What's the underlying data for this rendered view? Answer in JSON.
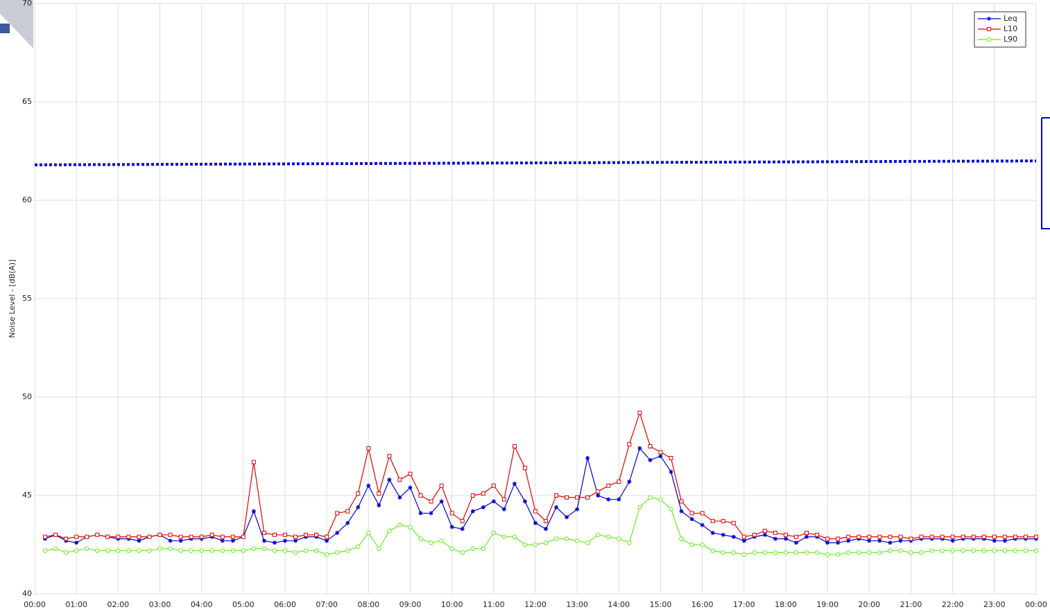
{
  "chart_data": {
    "type": "line",
    "y_label": "Noise Level - [dB(A)]",
    "x": [
      0.25,
      0.5,
      0.75,
      1,
      1.25,
      1.5,
      1.75,
      2,
      2.25,
      2.5,
      2.75,
      3,
      3.25,
      3.5,
      3.75,
      4,
      4.25,
      4.5,
      4.75,
      5,
      5.25,
      5.5,
      5.75,
      6,
      6.25,
      6.5,
      6.75,
      7,
      7.25,
      7.5,
      7.75,
      8,
      8.25,
      8.5,
      8.75,
      9,
      9.25,
      9.5,
      9.75,
      10,
      10.25,
      10.5,
      10.75,
      11,
      11.25,
      11.5,
      11.75,
      12,
      12.25,
      12.5,
      12.75,
      13,
      13.25,
      13.5,
      13.75,
      14,
      14.25,
      14.5,
      14.75,
      15,
      15.25,
      15.5,
      15.75,
      16,
      16.25,
      16.5,
      16.75,
      17,
      17.25,
      17.5,
      17.75,
      18,
      18.25,
      18.5,
      18.75,
      19,
      19.25,
      19.5,
      19.75,
      20,
      20.25,
      20.5,
      20.75,
      21,
      21.25,
      21.5,
      21.75,
      22,
      22.25,
      22.5,
      22.75,
      23,
      23.25,
      23.5,
      23.75,
      24
    ],
    "series": [
      {
        "name": "Leq",
        "color": "#0000cc",
        "marker": "star",
        "values": [
          42.8,
          43.0,
          42.7,
          42.6,
          42.9,
          43.0,
          42.9,
          42.8,
          42.8,
          42.7,
          42.9,
          43.0,
          42.7,
          42.7,
          42.8,
          42.8,
          42.9,
          42.7,
          42.7,
          42.9,
          44.2,
          42.7,
          42.6,
          42.7,
          42.7,
          42.9,
          42.9,
          42.7,
          43.1,
          43.6,
          44.4,
          45.5,
          44.5,
          45.8,
          44.9,
          45.4,
          44.1,
          44.1,
          44.7,
          43.4,
          43.3,
          44.2,
          44.4,
          44.7,
          44.3,
          45.6,
          44.7,
          43.6,
          43.3,
          44.4,
          43.9,
          44.3,
          46.9,
          45.0,
          44.8,
          44.8,
          45.7,
          47.4,
          46.8,
          47.0,
          46.2,
          44.2,
          43.8,
          43.5,
          43.1,
          43.0,
          42.9,
          42.7,
          42.9,
          43.0,
          42.8,
          42.8,
          42.6,
          42.9,
          42.9,
          42.6,
          42.6,
          42.7,
          42.8,
          42.7,
          42.7,
          42.6,
          42.7,
          42.7,
          42.8,
          42.8,
          42.8,
          42.7,
          42.8,
          42.8,
          42.8,
          42.7,
          42.7,
          42.8,
          42.8,
          42.8
        ]
      },
      {
        "name": "L10",
        "color": "#e00000",
        "marker": "square",
        "values": [
          42.9,
          43.0,
          42.8,
          42.9,
          42.9,
          43.0,
          42.9,
          42.9,
          42.9,
          42.9,
          42.9,
          43.0,
          43.0,
          42.9,
          42.9,
          42.9,
          43.0,
          42.9,
          42.9,
          42.9,
          46.7,
          43.1,
          43.0,
          43.0,
          42.9,
          43.0,
          43.0,
          42.9,
          44.1,
          44.2,
          45.1,
          47.4,
          45.1,
          47.0,
          45.8,
          46.1,
          45.0,
          44.7,
          45.5,
          44.1,
          43.7,
          45.0,
          45.1,
          45.5,
          44.8,
          47.5,
          46.4,
          44.2,
          43.7,
          45.0,
          44.9,
          44.9,
          44.9,
          45.2,
          45.5,
          45.7,
          47.6,
          49.2,
          47.5,
          47.2,
          46.9,
          44.7,
          44.1,
          44.1,
          43.7,
          43.7,
          43.6,
          42.9,
          43.0,
          43.2,
          43.1,
          43.0,
          42.9,
          43.1,
          43.0,
          42.8,
          42.8,
          42.9,
          42.9,
          42.9,
          42.9,
          42.9,
          42.9,
          42.8,
          42.9,
          42.9,
          42.9,
          42.9,
          42.9,
          42.9,
          42.9,
          42.9,
          42.9,
          42.9,
          42.9,
          42.9
        ]
      },
      {
        "name": "L90",
        "color": "#66ee22",
        "marker": "circle",
        "values": [
          42.2,
          42.3,
          42.1,
          42.2,
          42.3,
          42.2,
          42.2,
          42.2,
          42.2,
          42.2,
          42.2,
          42.3,
          42.3,
          42.2,
          42.2,
          42.2,
          42.2,
          42.2,
          42.2,
          42.2,
          42.3,
          42.3,
          42.2,
          42.2,
          42.1,
          42.2,
          42.2,
          42.0,
          42.1,
          42.2,
          42.4,
          43.1,
          42.3,
          43.2,
          43.5,
          43.4,
          42.8,
          42.6,
          42.7,
          42.3,
          42.1,
          42.3,
          42.3,
          43.1,
          42.9,
          42.9,
          42.5,
          42.5,
          42.6,
          42.8,
          42.8,
          42.7,
          42.6,
          43.0,
          42.9,
          42.8,
          42.6,
          44.4,
          44.9,
          44.8,
          44.3,
          42.8,
          42.5,
          42.5,
          42.2,
          42.1,
          42.1,
          42.0,
          42.1,
          42.1,
          42.1,
          42.1,
          42.1,
          42.1,
          42.1,
          42.0,
          42.0,
          42.1,
          42.1,
          42.1,
          42.1,
          42.2,
          42.2,
          42.1,
          42.1,
          42.2,
          42.2,
          42.2,
          42.2,
          42.2,
          42.2,
          42.2,
          42.2,
          42.2,
          42.2,
          42.2
        ]
      }
    ],
    "reference_line": {
      "color": "#0000dd",
      "values": [
        61.8,
        62.0
      ]
    },
    "xlim": [
      0,
      24
    ],
    "xticks": [
      {
        "value": 0,
        "label": "00:00"
      },
      {
        "value": 1,
        "label": "01:00"
      },
      {
        "value": 2,
        "label": "02:00"
      },
      {
        "value": 3,
        "label": "03:00"
      },
      {
        "value": 4,
        "label": "04:00"
      },
      {
        "value": 5,
        "label": "05:00"
      },
      {
        "value": 6,
        "label": "06:00"
      },
      {
        "value": 7,
        "label": "07:00"
      },
      {
        "value": 8,
        "label": "08:00"
      },
      {
        "value": 9,
        "label": "09:00"
      },
      {
        "value": 10,
        "label": "10:00"
      },
      {
        "value": 11,
        "label": "11:00"
      },
      {
        "value": 12,
        "label": "12:00"
      },
      {
        "value": 13,
        "label": "13:00"
      },
      {
        "value": 14,
        "label": "14:00"
      },
      {
        "value": 15,
        "label": "15:00"
      },
      {
        "value": 16,
        "label": "16:00"
      },
      {
        "value": 17,
        "label": "17:00"
      },
      {
        "value": 18,
        "label": "18:00"
      },
      {
        "value": 19,
        "label": "19:00"
      },
      {
        "value": 20,
        "label": "20:00"
      },
      {
        "value": 21,
        "label": "21:00"
      },
      {
        "value": 22,
        "label": "22:00"
      },
      {
        "value": 23,
        "label": "23:00"
      },
      {
        "value": 24,
        "label": "00:00"
      }
    ],
    "ylim": [
      40,
      70
    ],
    "yticks": [
      40,
      45,
      50,
      55,
      60,
      65,
      70
    ],
    "grid": true,
    "legend": "top-right"
  }
}
